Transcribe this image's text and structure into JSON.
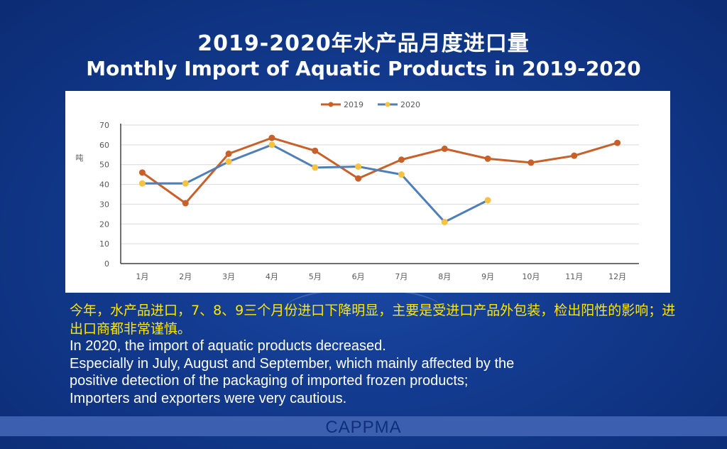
{
  "slide": {
    "title_cn": "2019-2020年水产品月度进口量",
    "title_en": "Monthly Import of Aquatic Products in 2019-2020",
    "caption_cn": "今年，水产品进口，7、8、9三个月份进口下降明显，主要是受进口产品外包装，检出阳性的影响；进出口商都非常谨慎。",
    "caption_en": [
      "In 2020, the import of aquatic products decreased.",
      "Especially in July, August and September, which mainly affected by the",
      "positive detection of the packaging of imported frozen products;",
      "Importers and exporters were very cautious."
    ],
    "footer": "CAPPMA"
  },
  "colors": {
    "series_2019": "#c8602a",
    "series_2020": "#4f7fb8",
    "marker_2020": "#f5c242",
    "gridline": "#d9d9d9",
    "axis_text": "#595959"
  },
  "chart_data": {
    "type": "line",
    "ylabel": "吨",
    "ylim": [
      0,
      70
    ],
    "yticks": [
      0,
      10,
      20,
      30,
      40,
      50,
      60,
      70
    ],
    "categories": [
      "1月",
      "2月",
      "3月",
      "4月",
      "5月",
      "6月",
      "7月",
      "8月",
      "9月",
      "10月",
      "11月",
      "12月"
    ],
    "legend_position": "top-center",
    "grid": true,
    "series": [
      {
        "name": "2019",
        "values": [
          46,
          30.5,
          55.5,
          63.5,
          57,
          43,
          52.5,
          58,
          53,
          51,
          54.5,
          61
        ]
      },
      {
        "name": "2020",
        "values": [
          40.5,
          40.5,
          51.5,
          60,
          48.5,
          49,
          45,
          21,
          32,
          null,
          null,
          null
        ]
      }
    ]
  }
}
